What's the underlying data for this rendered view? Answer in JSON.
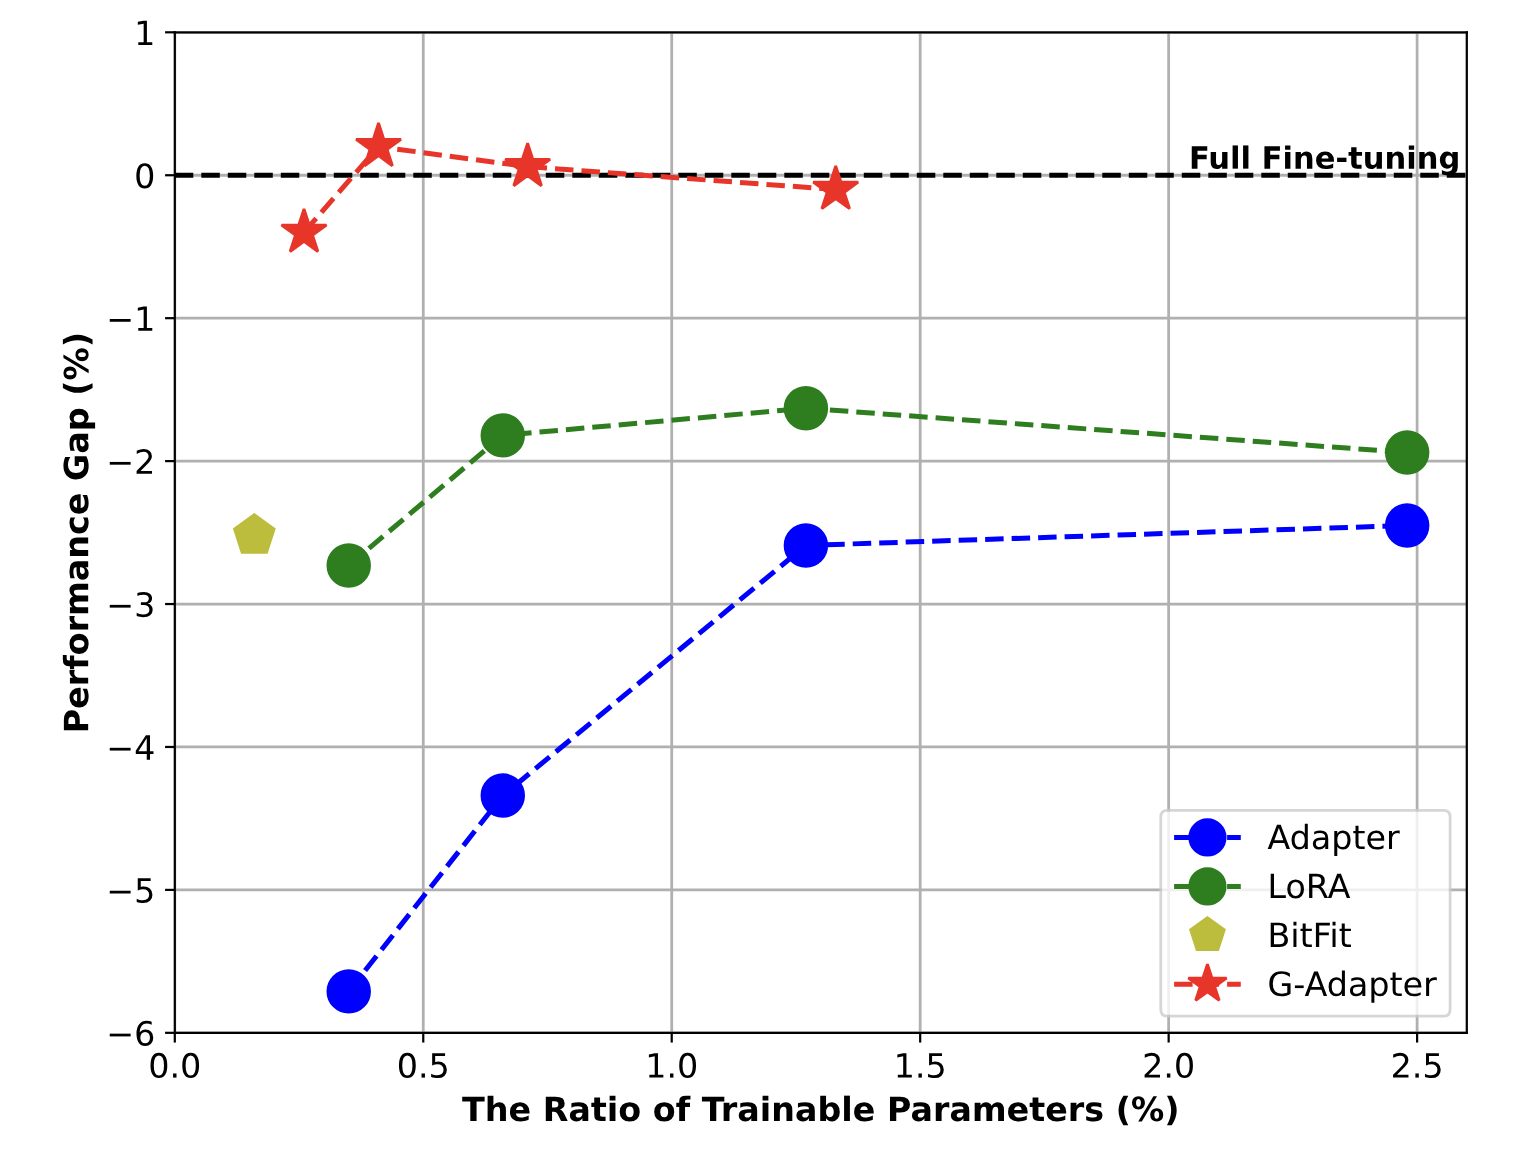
{
  "chart_data": {
    "type": "line",
    "xlabel": "The Ratio of Trainable Parameters (%)",
    "ylabel": "Performance Gap (%)",
    "xlim": [
      0,
      2.6
    ],
    "xticks": [
      {
        "value": 0,
        "label": "0.0"
      },
      0.5,
      {
        "value": 1,
        "label": "1.0"
      },
      1.5,
      {
        "value": 2,
        "label": "2.0"
      },
      2.5
    ],
    "ylim": [
      -6,
      1
    ],
    "yticks": [
      {
        "value": -6,
        "label": "−6"
      },
      {
        "value": -5,
        "label": "−5"
      },
      {
        "value": -4,
        "label": "−4"
      },
      {
        "value": -3,
        "label": "−3"
      },
      {
        "value": -2,
        "label": "−2"
      },
      {
        "value": -1,
        "label": "−1"
      },
      0,
      1
    ],
    "grid": true,
    "legend": "bottom right",
    "line_style": "dashed",
    "ref_lines": [
      {
        "axis": "y",
        "value": 0,
        "label": "Full Fine-tuning",
        "color": "#000000",
        "line_style": "dashed"
      }
    ],
    "series": [
      {
        "name": "Adapter",
        "color": "#0000ff",
        "marker": "circle",
        "x": [
          0.35,
          0.66,
          1.27,
          2.48
        ],
        "values": [
          -5.71,
          -4.34,
          -2.59,
          -2.45
        ]
      },
      {
        "name": "LoRA",
        "color": "#2e7d1e",
        "marker": "circle",
        "x": [
          0.35,
          0.66,
          1.27,
          2.48
        ],
        "values": [
          -2.73,
          -1.82,
          -1.63,
          -1.94
        ]
      },
      {
        "name": "BitFit",
        "type": "scatter",
        "color": "#bcbd3c",
        "x": [
          0.16
        ],
        "values": [
          -2.52
        ]
      },
      {
        "name": "G-Adapter",
        "color": "#e8352a",
        "marker": "star",
        "x": [
          0.26,
          0.41,
          0.71,
          1.33
        ],
        "values": [
          -0.4,
          0.2,
          0.06,
          -0.1
        ]
      }
    ]
  }
}
